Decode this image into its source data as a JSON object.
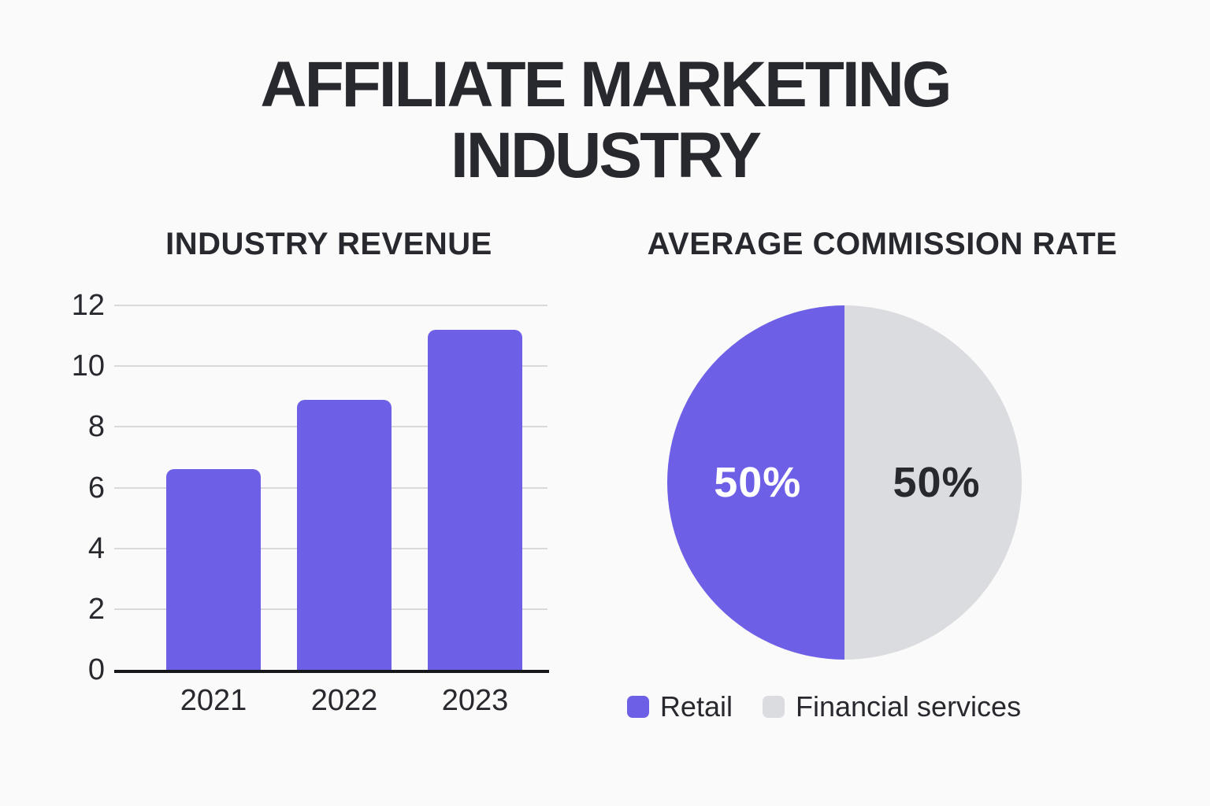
{
  "title": {
    "line1": "AFFILIATE MARKETING",
    "line2": "INDUSTRY"
  },
  "colors": {
    "purple": "#6E5FE7",
    "pie_gray": "#DBDCE0",
    "gridline": "#D9D9DB",
    "axis": "#17181B",
    "text_dark": "#27292E",
    "background": "#FAFAFA",
    "label_on_purple": "#FFFFFF"
  },
  "chart_data": [
    {
      "type": "bar",
      "title": "INDUSTRY REVENUE",
      "categories": [
        "2021",
        "2022",
        "2023"
      ],
      "values": [
        6.6,
        8.9,
        11.2
      ],
      "xlabel": "",
      "ylabel": "",
      "ylim": [
        0,
        12
      ],
      "yticks": [
        0,
        2,
        4,
        6,
        8,
        10,
        12
      ],
      "grid": true,
      "bar_color": "#6E5FE7"
    },
    {
      "type": "pie",
      "title": "AVERAGE COMMISSION RATE",
      "slices": [
        {
          "label": "Retail",
          "value": 50,
          "display": "50%",
          "color": "#6E5FE7",
          "label_color": "#FFFFFF"
        },
        {
          "label": "Financial services",
          "value": 50,
          "display": "50%",
          "color": "#DBDCE0",
          "label_color": "#27292E"
        }
      ],
      "legend_position": "bottom"
    }
  ]
}
